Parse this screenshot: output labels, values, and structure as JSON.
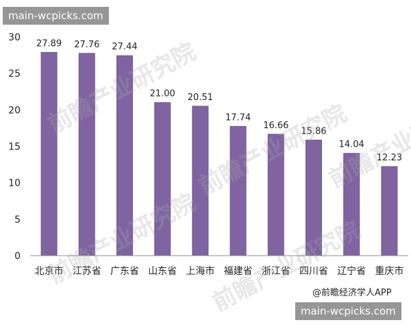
{
  "overlays": {
    "badge_top": "main-wcpicks.com",
    "badge_bottom": "main-wcpicks.com",
    "source": "@前瞻经济学人APP",
    "watermark": "前瞻产业研究院"
  },
  "colors": {
    "bar": "#8064A2",
    "bar_edge": "#6F5592",
    "axis": "#8C8C8C",
    "text": "#222222"
  },
  "chart_data": {
    "type": "bar",
    "categories": [
      "北京市",
      "江苏省",
      "广东省",
      "山东省",
      "上海市",
      "福建省",
      "浙江省",
      "四川省",
      "辽宁省",
      "重庆市"
    ],
    "values": [
      27.89,
      27.76,
      27.44,
      21.0,
      20.51,
      17.74,
      16.66,
      15.86,
      14.04,
      12.23
    ],
    "value_labels": [
      "27.89",
      "27.76",
      "27.44",
      "21.00",
      "20.51",
      "17.74",
      "16.66",
      "15.86",
      "14.04",
      "12.23"
    ],
    "yticks": [
      0,
      5,
      10,
      15,
      20,
      25,
      30
    ],
    "ylim": [
      0,
      30
    ],
    "title": "",
    "xlabel": "",
    "ylabel": "",
    "grid": false,
    "legend": "none"
  }
}
